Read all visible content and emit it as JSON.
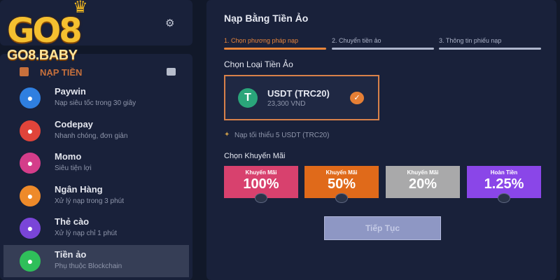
{
  "logo": {
    "text": "GO8",
    "sub": "GO8.BABY"
  },
  "sidebar": {
    "section_title": "NẠP TIỀN",
    "items": [
      {
        "title": "Paywin",
        "subtitle": "Nạp siêu tốc trong 30 giây",
        "color": "#2f7fe0",
        "icon": "wallet-icon"
      },
      {
        "title": "Codepay",
        "subtitle": "Nhanh chóng, đơn giản",
        "color": "#e0443a",
        "icon": "code-icon"
      },
      {
        "title": "Momo",
        "subtitle": "Siêu tiện lợi",
        "color": "#d43d8a",
        "icon": "momo-icon"
      },
      {
        "title": "Ngân Hàng",
        "subtitle": "Xử lý nạp trong 3 phút",
        "color": "#ee8a2a",
        "icon": "bank-icon"
      },
      {
        "title": "Thẻ cào",
        "subtitle": "Xử lý nạp chỉ 1 phút",
        "color": "#7a45d8",
        "icon": "card-icon"
      },
      {
        "title": "Tiền ảo",
        "subtitle": "Phụ thuộc Blockchain",
        "color": "#2fbf5a",
        "icon": "crypto-icon",
        "selected": true
      }
    ]
  },
  "main": {
    "title": "Nạp Bằng Tiền Ảo",
    "steps": [
      "1. Chọn phương pháp nạp",
      "2. Chuyển tiền ảo",
      "3. Thông tin phiếu nạp"
    ],
    "active_step": 1,
    "coin_label": "Chọn Loại Tiền Ảo",
    "coin": {
      "name": "USDT (TRC20)",
      "rate": "23,300 VND"
    },
    "note": "Nạp tối thiểu 5 USDT (TRC20)",
    "promo_label": "Chọn Khuyến Mãi",
    "promos": [
      {
        "label": "Khuyến Mãi",
        "value": "100%",
        "color": "#d8416e"
      },
      {
        "label": "Khuyến Mãi",
        "value": "50%",
        "color": "#e06a1a"
      },
      {
        "label": "Khuyến Mãi",
        "value": "20%",
        "color": "#a9a9aa"
      },
      {
        "label": "Hoàn Tiền",
        "value": "1.25%",
        "color": "#8a46e8"
      }
    ],
    "continue": "Tiếp Tục",
    "accent": "#e8853a"
  }
}
